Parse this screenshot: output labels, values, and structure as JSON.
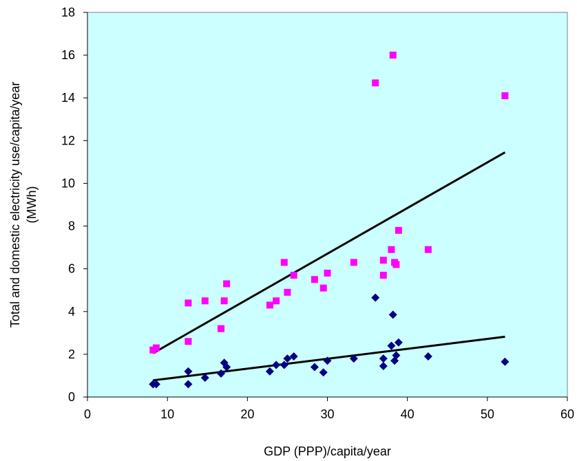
{
  "chart_data": {
    "type": "scatter",
    "title": "",
    "xlabel": "GDP (PPP)/capita/year",
    "ylabel_lines": [
      "Total and domestic electricity use/capita/year",
      "(MWh)"
    ],
    "xlim": [
      0,
      60
    ],
    "ylim": [
      0,
      18
    ],
    "x_ticks": [
      0,
      10,
      20,
      30,
      40,
      50,
      60
    ],
    "y_ticks": [
      0,
      2,
      4,
      6,
      8,
      10,
      12,
      14,
      16,
      18
    ],
    "grid": false,
    "legend": "none",
    "plot_background": "#CCFFFF",
    "series": [
      {
        "marker": "square",
        "color": "#FF00FF",
        "points": [
          [
            8.2,
            2.2
          ],
          [
            8.6,
            2.3
          ],
          [
            12.6,
            4.4
          ],
          [
            12.6,
            2.6
          ],
          [
            14.7,
            4.5
          ],
          [
            16.7,
            3.2
          ],
          [
            17.1,
            4.5
          ],
          [
            17.4,
            5.3
          ],
          [
            22.8,
            4.3
          ],
          [
            23.6,
            4.5
          ],
          [
            24.6,
            6.3
          ],
          [
            25.0,
            4.9
          ],
          [
            25.8,
            5.7
          ],
          [
            28.4,
            5.5
          ],
          [
            29.5,
            5.1
          ],
          [
            30.0,
            5.8
          ],
          [
            33.3,
            6.3
          ],
          [
            36.0,
            14.7
          ],
          [
            37.0,
            5.7
          ],
          [
            37.0,
            6.4
          ],
          [
            38.0,
            6.9
          ],
          [
            38.2,
            16.0
          ],
          [
            38.4,
            6.3
          ],
          [
            38.6,
            6.2
          ],
          [
            38.9,
            7.8
          ],
          [
            42.6,
            6.9
          ],
          [
            52.2,
            14.1
          ]
        ]
      },
      {
        "marker": "diamond",
        "color": "#000080",
        "points": [
          [
            8.2,
            0.6
          ],
          [
            8.6,
            0.6
          ],
          [
            12.6,
            1.2
          ],
          [
            12.6,
            0.6
          ],
          [
            14.7,
            0.9
          ],
          [
            16.7,
            1.1
          ],
          [
            17.1,
            1.6
          ],
          [
            17.4,
            1.4
          ],
          [
            22.8,
            1.2
          ],
          [
            23.6,
            1.5
          ],
          [
            24.6,
            1.5
          ],
          [
            25.0,
            1.8
          ],
          [
            25.8,
            1.9
          ],
          [
            28.4,
            1.4
          ],
          [
            29.5,
            1.15
          ],
          [
            30.0,
            1.7
          ],
          [
            33.3,
            1.8
          ],
          [
            36.0,
            4.65
          ],
          [
            37.0,
            1.8
          ],
          [
            37.0,
            1.45
          ],
          [
            38.0,
            2.4
          ],
          [
            38.2,
            3.85
          ],
          [
            38.4,
            1.7
          ],
          [
            38.6,
            1.95
          ],
          [
            38.9,
            2.55
          ],
          [
            42.6,
            1.9
          ],
          [
            52.2,
            1.65
          ]
        ]
      }
    ],
    "trendlines": [
      {
        "x": [
          8.2,
          52.2
        ],
        "y": [
          2.05,
          11.45
        ],
        "color": "#000000"
      },
      {
        "x": [
          8.2,
          52.2
        ],
        "y": [
          0.78,
          2.82
        ],
        "color": "#000000"
      }
    ]
  }
}
